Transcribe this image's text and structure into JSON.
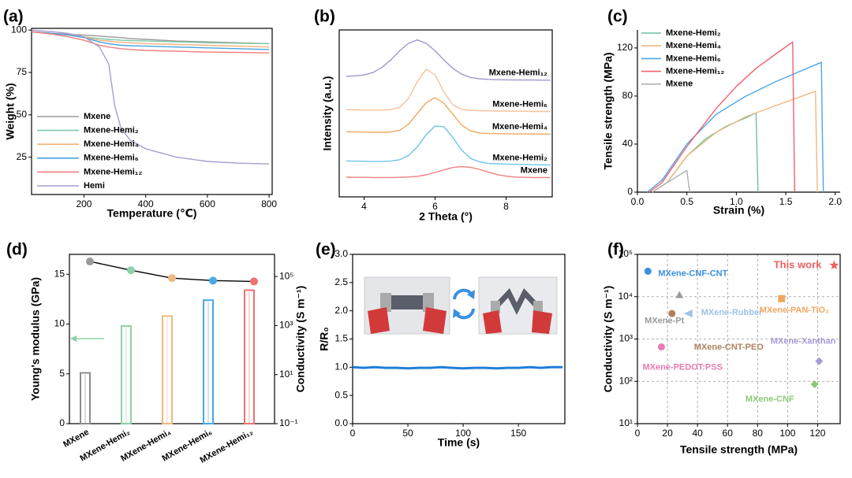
{
  "chart_data": [
    {
      "type": "line",
      "panel_label": "(a)",
      "xlabel": "Temperature (℃)",
      "ylabel": "Weight (%)",
      "x": [
        30,
        100,
        150,
        200,
        250,
        280,
        300,
        320,
        350,
        400,
        500,
        600,
        700,
        800
      ],
      "xlim": [
        30,
        810
      ],
      "xticks": [
        200,
        400,
        600,
        800
      ],
      "ylim": [
        3,
        101
      ],
      "yticks": [
        25,
        50,
        75,
        100
      ],
      "legend": "lower left",
      "series": [
        {
          "name": "Mxene",
          "color": "#9a9a9a",
          "values": [
            99,
            98,
            97.5,
            97,
            96.5,
            96,
            95.8,
            95.5,
            95,
            94.5,
            93.5,
            93,
            92.5,
            92
          ]
        },
        {
          "name": "Mxene-Hemi₂",
          "color": "#7fc8a9",
          "values": [
            99,
            98,
            97,
            96,
            95,
            94.5,
            94.3,
            94,
            93.8,
            93.5,
            93,
            92.5,
            92.2,
            92
          ]
        },
        {
          "name": "Mxene-Hemi₄",
          "color": "#f0b27a",
          "values": [
            99,
            98,
            97,
            96,
            94,
            93.5,
            93,
            92.8,
            92.5,
            92,
            91.5,
            91,
            90.5,
            90
          ]
        },
        {
          "name": "Mxene-Hemi₆",
          "color": "#4aa3df",
          "values": [
            99,
            98,
            97,
            95.5,
            93,
            92,
            91.5,
            91,
            90.8,
            90.5,
            90,
            89.5,
            89,
            88.5
          ]
        },
        {
          "name": "Mxene-Hemi₁₂",
          "color": "#f07c7c",
          "values": [
            99,
            97.5,
            96,
            94,
            91,
            90,
            89.5,
            89,
            88.5,
            88,
            87.5,
            87,
            86.8,
            86.5
          ]
        },
        {
          "name": "Hemi",
          "color": "#a99cd0",
          "values": [
            100,
            99,
            98,
            96,
            90,
            80,
            55,
            42,
            35,
            30,
            25,
            22.5,
            21.5,
            21
          ]
        }
      ]
    },
    {
      "type": "line",
      "panel_label": "(b)",
      "xlabel": "2 Theta (°)",
      "ylabel": "Intensity (a.u.)",
      "x": [
        3.5,
        3.75,
        4,
        4.25,
        4.5,
        4.75,
        5,
        5.25,
        5.5,
        5.75,
        6,
        6.25,
        6.5,
        6.75,
        7,
        7.25,
        7.5,
        7.75,
        8,
        8.25,
        8.5,
        8.75,
        9,
        9.25
      ],
      "xlim": [
        3.3,
        9.3
      ],
      "xticks": [
        4,
        6,
        8
      ],
      "ylim": [
        0,
        10
      ],
      "legend": "direct",
      "series": [
        {
          "name": "Mxene",
          "color": "#f08080",
          "values": [
            1.18,
            1.17,
            1.17,
            1.16,
            1.16,
            1.16,
            1.17,
            1.19,
            1.23,
            1.32,
            1.46,
            1.62,
            1.76,
            1.81,
            1.77,
            1.65,
            1.48,
            1.33,
            1.24,
            1.19,
            1.17,
            1.16,
            1.16,
            1.15
          ]
        },
        {
          "name": "Mxene-Hemi₂",
          "color": "#6ec6ea",
          "values": [
            2.15,
            2.14,
            2.13,
            2.12,
            2.12,
            2.14,
            2.22,
            2.47,
            3.0,
            3.72,
            4.25,
            4.2,
            3.55,
            2.8,
            2.3,
            2.1,
            2.0,
            1.98,
            1.96,
            1.95,
            1.94,
            1.93,
            1.92,
            1.91
          ]
        },
        {
          "name": "Mxene-Hemi₄",
          "color": "#f0a860",
          "values": [
            3.9,
            3.89,
            3.88,
            3.87,
            3.87,
            3.88,
            3.98,
            4.35,
            5.0,
            5.63,
            5.95,
            5.6,
            4.95,
            4.3,
            3.95,
            3.83,
            3.8,
            3.79,
            3.78,
            3.78,
            3.77,
            3.77,
            3.76,
            3.76
          ]
        },
        {
          "name": "Mxene-Hemi₆",
          "color": "#f5c09a",
          "values": [
            5.22,
            5.21,
            5.2,
            5.2,
            5.2,
            5.23,
            5.36,
            5.9,
            6.9,
            7.65,
            7.3,
            6.28,
            5.52,
            5.24,
            5.18,
            5.16,
            5.15,
            5.14,
            5.14,
            5.13,
            5.13,
            5.12,
            5.12,
            5.11
          ]
        },
        {
          "name": "Mxene-Hemi₁₂",
          "color": "#9f97cf",
          "values": [
            7.22,
            7.25,
            7.3,
            7.45,
            7.75,
            8.2,
            8.75,
            9.2,
            9.4,
            9.2,
            8.75,
            8.2,
            7.7,
            7.35,
            7.15,
            7.07,
            7.04,
            7.02,
            7.01,
            7.0,
            7.0,
            7.0,
            6.99,
            6.99
          ]
        }
      ]
    },
    {
      "type": "line",
      "panel_label": "(c)",
      "xlabel": "Strain (%)",
      "ylabel": "Tensile strength (MPa)",
      "xlim": [
        0,
        2.05
      ],
      "xticks": [
        {
          "value": 0,
          "label": "0.0"
        },
        {
          "value": 0.5,
          "label": "0.5"
        },
        {
          "value": 1,
          "label": "1.0"
        },
        {
          "value": 1.5,
          "label": "1.5"
        },
        {
          "value": 2,
          "label": "2.0"
        }
      ],
      "ylim": [
        0,
        135
      ],
      "yticks": [
        0,
        40,
        80,
        120
      ],
      "legend": "upper left",
      "series": [
        {
          "name": "Mxene-Hemi₂",
          "color": "#6cc2a0",
          "x": [
            0.15,
            0.3,
            0.5,
            0.7,
            0.9,
            1.1,
            1.2,
            1.21,
            1.22
          ],
          "values": [
            0,
            8,
            30,
            45,
            55,
            62,
            66,
            30,
            0
          ]
        },
        {
          "name": "Mxene-Hemi₄",
          "color": "#f0b880",
          "x": [
            0.15,
            0.3,
            0.5,
            0.8,
            1.1,
            1.4,
            1.6,
            1.8,
            1.81,
            1.82
          ],
          "values": [
            0,
            8,
            30,
            50,
            63,
            72,
            78,
            84,
            40,
            0
          ]
        },
        {
          "name": "Mxene-Hemi₆",
          "color": "#4aa8e8",
          "x": [
            0.1,
            0.25,
            0.5,
            0.8,
            1.1,
            1.4,
            1.6,
            1.8,
            1.86,
            1.87,
            1.88
          ],
          "values": [
            0,
            10,
            40,
            65,
            80,
            92,
            99,
            106,
            108,
            50,
            0
          ]
        },
        {
          "name": "Mxene-Hemi₁₂",
          "color": "#f06070",
          "x": [
            0.12,
            0.25,
            0.5,
            0.8,
            1.0,
            1.2,
            1.4,
            1.57,
            1.58,
            1.59
          ],
          "values": [
            0,
            8,
            38,
            70,
            88,
            103,
            115,
            125,
            60,
            0
          ]
        },
        {
          "name": "Mxene",
          "color": "#b0b0b0",
          "x": [
            0.15,
            0.3,
            0.5,
            0.52,
            0.53
          ],
          "values": [
            0,
            8,
            18,
            5,
            0
          ]
        }
      ]
    },
    {
      "type": "combo",
      "panel_label": "(d)",
      "ylabel": "Young's modulus (GPa)",
      "y2label": "Conductivity (S m⁻¹)",
      "categories": [
        "MXene",
        "MXene-Hemi₂",
        "MXene-Hemi₄",
        "MXene-Hemi₆",
        "MXene-Hemi₁₂"
      ],
      "ylim": [
        0,
        17
      ],
      "yticks": [
        0,
        5,
        10,
        15
      ],
      "y2lim": [
        0.1,
        800000
      ],
      "y2log": true,
      "y2ticks": [
        {
          "value": 0.1,
          "label": "10⁻¹"
        },
        {
          "value": 10,
          "label": "10¹"
        },
        {
          "value": 1000,
          "label": "10³"
        },
        {
          "value": 100000,
          "label": "10⁵"
        }
      ],
      "series": [
        {
          "type": "bar",
          "colors": [
            "#8c8c8c",
            "#8fd0a8",
            "#f0b880",
            "#4aa8e8",
            "#f07070"
          ],
          "values": [
            5.1,
            9.8,
            10.8,
            12.4,
            13.4
          ]
        },
        {
          "type": "line",
          "axis": "y2",
          "color": "#000000",
          "marker_colors": [
            "#9a9a9a",
            "#8fd0a8",
            "#f0b880",
            "#4aa8e8",
            "#f07070"
          ],
          "values": [
            410000,
            180000,
            86000,
            68000,
            63000
          ]
        }
      ]
    },
    {
      "type": "line",
      "panel_label": "(e)",
      "xlabel": "Time (s)",
      "ylabel": "R/R₀",
      "x": [
        0,
        10,
        20,
        30,
        40,
        50,
        60,
        70,
        80,
        90,
        100,
        110,
        120,
        130,
        140,
        150,
        160,
        170,
        180,
        190
      ],
      "xlim": [
        0,
        192
      ],
      "xticks": [
        0,
        50,
        100,
        150
      ],
      "ylim": [
        0,
        3
      ],
      "yticks": [
        {
          "value": 0,
          "label": "0.0"
        },
        {
          "value": 0.5,
          "label": "0.5"
        },
        {
          "value": 1,
          "label": "1.0"
        },
        {
          "value": 1.5,
          "label": "1.5"
        },
        {
          "value": 2,
          "label": "2.0"
        },
        {
          "value": 2.5,
          "label": "2.5"
        },
        {
          "value": 3,
          "label": "3.0"
        }
      ],
      "series": [
        {
          "color": "#1f7fd8",
          "values": [
            1.0,
            0.99,
            1.0,
            0.99,
            0.99,
            0.98,
            0.99,
            0.99,
            1.0,
            0.99,
            0.98,
            0.99,
            0.99,
            0.98,
            0.99,
            0.99,
            1.0,
            0.99,
            1.0,
            1.0
          ]
        }
      ]
    },
    {
      "type": "scatter",
      "panel_label": "(f)",
      "xlabel": "Tensile strength (MPa)",
      "ylabel": "Conductivity (S m⁻¹)",
      "xlim": [
        0,
        135
      ],
      "xticks": [
        0,
        20,
        40,
        60,
        80,
        100,
        120
      ],
      "ylim": [
        10,
        100000
      ],
      "ylog": true,
      "yticks": [
        {
          "value": 10,
          "label": "10¹"
        },
        {
          "value": 100,
          "label": "10²"
        },
        {
          "value": 1000,
          "label": "10³"
        },
        {
          "value": 10000,
          "label": "10⁴"
        },
        {
          "value": 100000,
          "label": "10⁵"
        }
      ],
      "grid": true,
      "series": [
        {
          "name": "MXene-CNF-CNT",
          "color": "#3a8fe0",
          "marker": "circle",
          "x": [
            7
          ],
          "values": [
            40000
          ]
        },
        {
          "name": "MXene-Rubber",
          "color": "#9cc3e8",
          "marker": "triangle-left",
          "x": [
            34
          ],
          "values": [
            4000
          ]
        },
        {
          "name": "MXene-Pt",
          "color": "#9a9a9a",
          "marker": "triangle",
          "x": [
            28
          ],
          "values": [
            11000
          ]
        },
        {
          "name": "MXene-PAN-TiO₂",
          "color": "#f0a860",
          "marker": "square",
          "x": [
            96
          ],
          "values": [
            9000
          ]
        },
        {
          "name": "MXene-CNT-PEO",
          "color": "#b08060",
          "marker": "circle",
          "x": [
            23
          ],
          "values": [
            4000
          ]
        },
        {
          "name": "MXene-PEDOT:PSS",
          "color": "#e87ab0",
          "marker": "circle",
          "x": [
            16
          ],
          "values": [
            650
          ]
        },
        {
          "name": "MXene-Xanthan",
          "color": "#a89ad8",
          "marker": "diamond",
          "x": [
            121
          ],
          "values": [
            300
          ]
        },
        {
          "name": "MXene-CNF",
          "color": "#8cc878",
          "marker": "diamond",
          "x": [
            118
          ],
          "values": [
            85
          ]
        },
        {
          "name": "This work",
          "color": "#f06060",
          "marker": "star",
          "x": [
            131
          ],
          "values": [
            55000
          ]
        }
      ]
    }
  ]
}
